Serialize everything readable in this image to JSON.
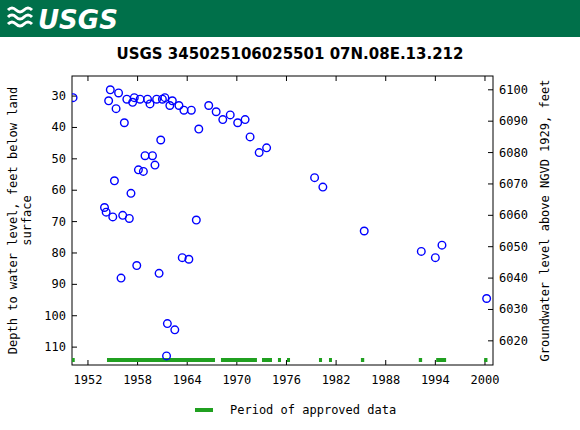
{
  "header": {
    "logo": "USGS"
  },
  "chart_data": {
    "type": "scatter",
    "title": "USGS 345025106025501 07N.08E.13.212",
    "ylabel": [
      "Depth to water level, feet below land",
      "surface"
    ],
    "y2label": "Groundwater level above NGVD 1929, feet",
    "x": [
      1950.2,
      1954.0,
      1954.2,
      1954.5,
      1954.7,
      1955.0,
      1955.2,
      1955.4,
      1955.7,
      1956.0,
      1956.2,
      1956.4,
      1956.7,
      1957.0,
      1957.2,
      1957.4,
      1957.6,
      1957.9,
      1958.1,
      1958.3,
      1958.7,
      1958.9,
      1959.2,
      1959.5,
      1959.8,
      1960.1,
      1960.3,
      1960.6,
      1960.8,
      1961.0,
      1961.3,
      1961.5,
      1961.6,
      1961.9,
      1962.2,
      1962.5,
      1963.0,
      1963.4,
      1963.6,
      1964.2,
      1964.5,
      1965.1,
      1965.4,
      1966.6,
      1967.5,
      1968.3,
      1969.2,
      1970.1,
      1971.0,
      1971.6,
      1972.7,
      1973.6,
      1979.4,
      1980.4,
      1985.4,
      1992.3,
      1994.0,
      1994.8,
      2000.2
    ],
    "values": [
      30.5,
      65.5,
      67,
      31.5,
      28,
      68.5,
      57,
      34,
      29,
      88,
      68,
      38.5,
      31,
      69,
      61,
      32,
      30.5,
      84,
      53.5,
      31,
      54,
      49,
      31,
      32.5,
      49,
      52,
      31,
      86.5,
      44,
      31,
      30.5,
      112.8,
      102.5,
      33,
      31.5,
      104.5,
      33,
      81.5,
      34.5,
      82,
      34.5,
      69.5,
      40.5,
      33,
      35,
      37.5,
      36,
      38.5,
      37.5,
      43,
      48,
      46.5,
      56,
      59,
      73,
      79.5,
      81.5,
      77.5,
      94.5
    ],
    "color": "#0000ff",
    "marker": "circle",
    "xlim": [
      1950.07,
      2000.97
    ],
    "xticks": [
      1952,
      1958,
      1964,
      1970,
      1976,
      1982,
      1988,
      1994,
      2000
    ],
    "ylim": [
      23.6,
      115.7
    ],
    "yticks": [
      30,
      40,
      50,
      60,
      70,
      80,
      90,
      100,
      110
    ],
    "y2lim": [
      6104.4,
      6012.3
    ],
    "y2ticks": [
      6020,
      6030,
      6040,
      6050,
      6060,
      6070,
      6080,
      6090,
      6100
    ],
    "grid": false,
    "approved_periods": {
      "name": "Period of approved data",
      "color": "#20a020",
      "ranges": [
        [
          1950.07,
          1950.4
        ],
        [
          1954.3,
          1967.36
        ],
        [
          1968.08,
          1972.43
        ],
        [
          1973.04,
          1974.25
        ],
        [
          1974.97,
          1975.34
        ],
        [
          1976.06,
          1976.43
        ],
        [
          1979.93,
          1980.3
        ],
        [
          1981.14,
          1981.5
        ],
        [
          1985.0,
          1985.4
        ],
        [
          1992.0,
          1992.4
        ],
        [
          1994.1,
          1995.3
        ],
        [
          1999.9,
          2000.3
        ]
      ]
    }
  }
}
